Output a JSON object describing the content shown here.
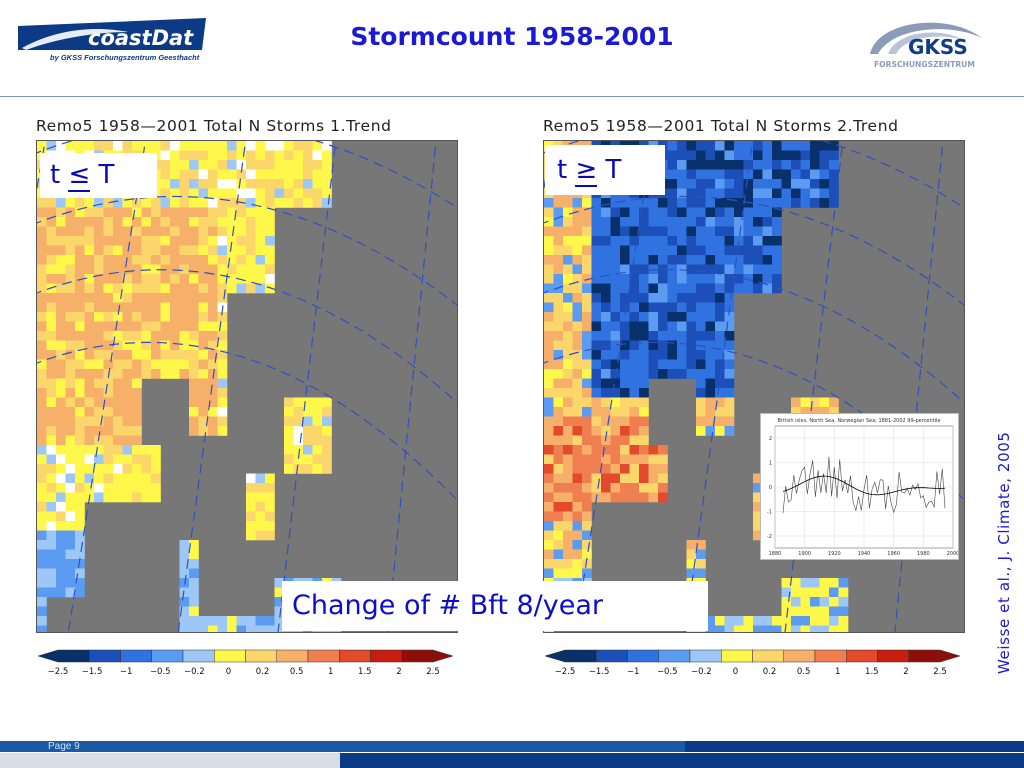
{
  "header": {
    "title": "Stormcount 1958-2001",
    "logo_left": {
      "name": "coastDat",
      "subtitle": "by GKSS Forschungszentrum Geesthacht"
    },
    "logo_right": {
      "name": "GKSS",
      "subtitle": "FORSCHUNGSZENTRUM"
    }
  },
  "maps": [
    {
      "title": "Remo5  1958—2001  Total  N  Storms  1.Trend",
      "condition_t": "t",
      "condition_op": "≤",
      "condition_T": "T"
    },
    {
      "title": "Remo5  1958—2001  Total  N  Storms  2.Trend",
      "condition_t": "t",
      "condition_op": "≥",
      "condition_T": "T"
    }
  ],
  "colorbar": {
    "ticks": [
      "−2.5",
      "−1.5",
      "−1",
      "−0.5",
      "−0.2",
      "0",
      "0.2",
      "0.5",
      "1",
      "1.5",
      "2",
      "2.5"
    ],
    "colors": [
      "#08306b",
      "#1c4fb8",
      "#2f72e0",
      "#5b9bf2",
      "#9cc7f7",
      "#fff84a",
      "#fbd66a",
      "#f6b06a",
      "#ef7f50",
      "#e24a2b",
      "#c81e10",
      "#8f0e0a"
    ]
  },
  "change_label": "Change of # Bft 8/year",
  "citation": "Weisse et al., J. Climate, 2005",
  "inset": {
    "title": "British isles, North Sea, Norwegian Sea; 1881-2002  99-percentile",
    "yticks": [
      "2",
      "1",
      "0",
      "-1",
      "-2"
    ],
    "xticks": [
      "1880",
      "1900",
      "1920",
      "1940",
      "1960",
      "1980",
      "2000"
    ]
  },
  "footer": {
    "page": "Page 9"
  }
}
